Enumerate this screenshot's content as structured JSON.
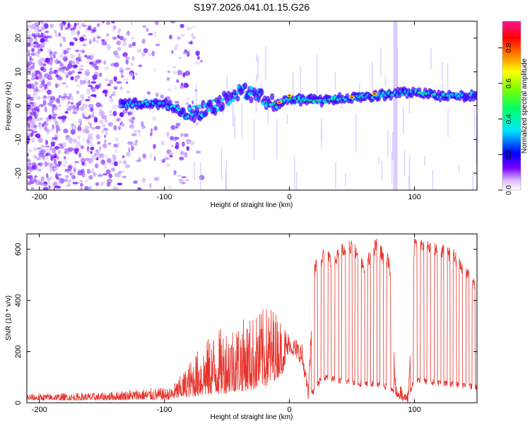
{
  "chart_data": [
    {
      "type": "heatmap",
      "title": "S197.2026.041.01.15.G26",
      "xlabel": "Height of straight line (km)",
      "ylabel": "Frequency (Hz)",
      "xlim": [
        -210,
        150
      ],
      "ylim": [
        -25,
        25
      ],
      "x_ticks": [
        -200,
        -100,
        0,
        100
      ],
      "y_ticks": [
        -20,
        -10,
        0,
        10,
        20
      ],
      "x_tick_labels": [
        "-200",
        "-100",
        "0",
        "100"
      ],
      "y_tick_labels": [
        "-20",
        "-10",
        "0",
        "10",
        "20"
      ],
      "colorbar": {
        "label": "Normalized spectral amplitude",
        "range": [
          0,
          0.95
        ],
        "ticks": [
          0.0,
          0.2,
          0.4,
          0.6,
          0.8
        ],
        "tick_labels": [
          "0.0",
          "0.2",
          "0.4",
          "0.6",
          "0.8"
        ],
        "colormap": [
          "#ffffff",
          "#7b00ff",
          "#0000ff",
          "#00e5ff",
          "#00ff00",
          "#ffff00",
          "#ff8000",
          "#ff0000",
          "#ff1493"
        ]
      },
      "ridge": {
        "x": [
          -135,
          -120,
          -100,
          -90,
          -82,
          -75,
          -60,
          -45,
          -35,
          -25,
          -18,
          -10,
          0,
          20,
          40,
          60,
          80,
          100,
          120,
          150
        ],
        "freq_hz": [
          0.5,
          0.8,
          0.5,
          -1,
          -3,
          -2,
          0,
          3,
          4,
          3,
          1,
          0.5,
          2,
          1.5,
          2,
          2.5,
          3.5,
          4,
          3,
          3
        ]
      },
      "noise_region_x": [
        -210,
        -80
      ]
    },
    {
      "type": "line",
      "xlabel": "Height of straight line (km)",
      "ylabel": "SNR (10 * v/v)",
      "xlim": [
        -210,
        150
      ],
      "ylim": [
        0,
        660
      ],
      "x_ticks": [
        -200,
        -100,
        0,
        100
      ],
      "y_ticks": [
        0,
        200,
        400,
        600
      ],
      "x_tick_labels": [
        "-200",
        "-100",
        "0",
        "100"
      ],
      "y_tick_labels": [
        "0",
        "200",
        "400",
        "600"
      ],
      "series": [
        {
          "name": "SNR",
          "color": "#e8332b",
          "envelope_x": [
            -210,
            -150,
            -120,
            -95,
            -85,
            -75,
            -60,
            -45,
            -30,
            -15,
            -5,
            0,
            10,
            15,
            20,
            25,
            30,
            35,
            40,
            50,
            60,
            70,
            75,
            80,
            85,
            90,
            95,
            100,
            110,
            120,
            130,
            140,
            150
          ],
          "envelope_high": [
            35,
            40,
            55,
            60,
            120,
            200,
            280,
            320,
            340,
            390,
            320,
            270,
            240,
            60,
            550,
            580,
            620,
            560,
            630,
            640,
            560,
            650,
            600,
            580,
            80,
            60,
            40,
            650,
            640,
            620,
            610,
            540,
            480
          ],
          "envelope_low": [
            10,
            10,
            12,
            12,
            20,
            25,
            30,
            40,
            50,
            70,
            120,
            200,
            150,
            20,
            30,
            80,
            90,
            80,
            75,
            70,
            60,
            60,
            50,
            55,
            20,
            10,
            10,
            80,
            70,
            65,
            60,
            55,
            50
          ]
        }
      ]
    }
  ]
}
